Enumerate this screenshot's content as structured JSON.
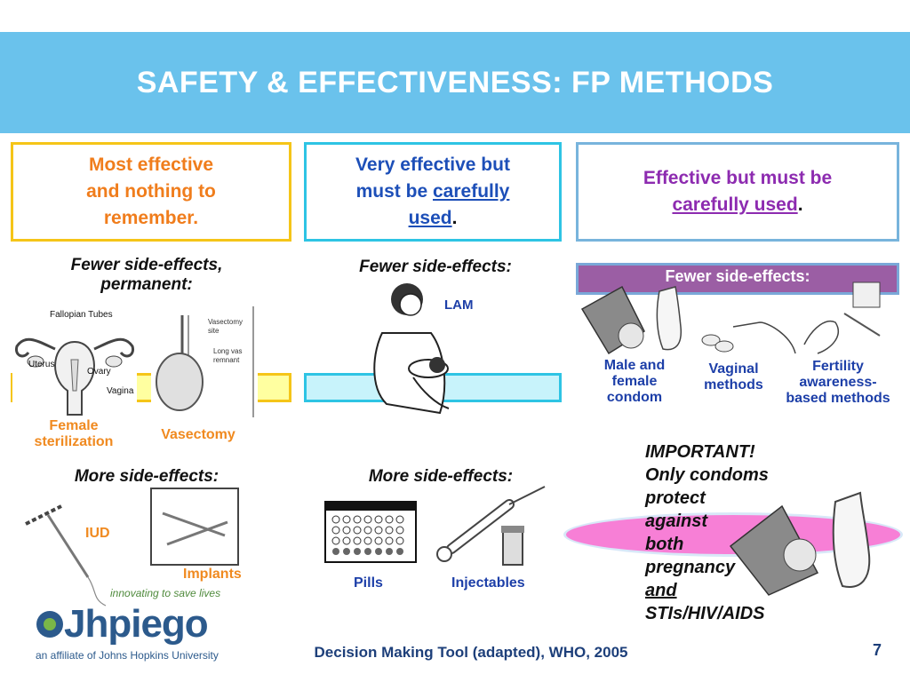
{
  "slide": {
    "title": "SAFETY & EFFECTIVENESS: FP METHODS",
    "page_number": "7",
    "footer": "Decision Making Tool (adapted), WHO, 2005"
  },
  "tiers": {
    "most": {
      "line1": "Most effective",
      "line2": "and nothing to",
      "line3": "remember."
    },
    "very": {
      "line1": "Very effective but",
      "line2_prefix": "must be ",
      "line2_link": "carefully",
      "line3_link": "used",
      "line3_suffix": "."
    },
    "effective": {
      "line1": "Effective but must be",
      "line2_link": "carefully used",
      "line2_suffix": "."
    }
  },
  "side_effects": {
    "fewer_permanent_1": "Fewer side-effects,",
    "fewer_permanent_2": "permanent:",
    "fewer": "Fewer side-effects:",
    "fewer_banner": "Fewer side-effects:",
    "more_1": "More side-effects:",
    "more_2": "More side-effects:"
  },
  "methods": {
    "female_sterilization_1": "Female",
    "female_sterilization_2": "sterilization",
    "vasectomy": "Vasectomy",
    "lam": "LAM",
    "iud": "IUD",
    "implants": "Implants",
    "pills": "Pills",
    "injectables": "Injectables",
    "condom_1": "Male and",
    "condom_2": "female",
    "condom_3": "condom",
    "vaginal_1": "Vaginal",
    "vaginal_2": "methods",
    "fertility_1": "Fertility",
    "fertility_2": "awareness-",
    "fertility_3": "based methods"
  },
  "anatomy_labels": {
    "fallopian": "Fallopian Tubes",
    "uterus": "Uterus",
    "ovary": "Ovary",
    "vagina": "Vagina",
    "vasectomy_site_1": "Vasectomy",
    "vasectomy_site_2": "site",
    "vas_remnant_1": "Long vas",
    "vas_remnant_2": "remnant"
  },
  "important": {
    "l1": "IMPORTANT!",
    "l2": "Only condoms",
    "l3": "protect",
    "l4": "against",
    "l5": "both",
    "l6": "pregnancy",
    "l7": "and",
    "l8": "STIs/HIV/AIDS"
  },
  "logo": {
    "name": "Jhpiego",
    "tagline": "innovating to save lives",
    "affiliation": "an affiliate of Johns Hopkins University"
  },
  "colors": {
    "header_blue": "#6ac2ec",
    "most_border": "#f5c518",
    "very_border": "#2ec4e4",
    "effective_border": "#78b4dc",
    "banner_purple": "#9b5ea4",
    "highlight_pink": "#f77fd6"
  }
}
